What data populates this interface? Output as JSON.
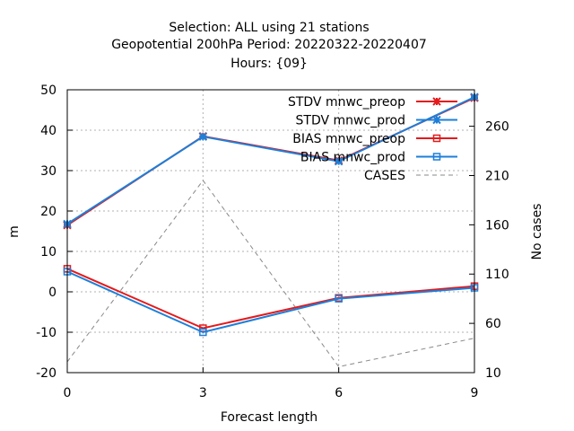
{
  "chart_data": {
    "type": "line",
    "title_lines": [
      "Selection: ALL using    21 stations",
      "Geopotential 200hPa   Period: 20220322-20220407",
      "Hours: {09}"
    ],
    "xlabel": "Forecast length",
    "ylabel": "m",
    "y2label": "No cases",
    "x": [
      0,
      3,
      6,
      9
    ],
    "xlim": [
      0,
      9
    ],
    "ylim": [
      -20,
      50
    ],
    "y2lim": [
      10,
      297
    ],
    "x_ticks": [
      "0",
      "3",
      "6",
      "9"
    ],
    "y_ticks": [
      "-20",
      "-10",
      "0",
      "10",
      "20",
      "30",
      "40",
      "50"
    ],
    "y2_ticks": [
      "10",
      "60",
      "110",
      "160",
      "210",
      "260"
    ],
    "grid": true,
    "legend_position": "top-right",
    "series": [
      {
        "name": "STDV mnwc_preop",
        "axis": "y",
        "color": "#e41a1c",
        "marker": "x",
        "values": [
          16.5,
          38.5,
          32.5,
          48.0
        ]
      },
      {
        "name": "STDV mnwc_prod",
        "axis": "y",
        "color": "#1e7fd8",
        "marker": "x",
        "values": [
          16.8,
          38.4,
          32.3,
          48.2
        ]
      },
      {
        "name": "BIAS mnwc_preop",
        "axis": "y",
        "color": "#e41a1c",
        "marker": "square",
        "values": [
          5.7,
          -9.0,
          -1.5,
          1.4
        ]
      },
      {
        "name": "BIAS mnwc_prod",
        "axis": "y",
        "color": "#1e7fd8",
        "marker": "square",
        "values": [
          5.0,
          -10.0,
          -1.7,
          1.0
        ]
      },
      {
        "name": "CASES",
        "axis": "y2",
        "color": "#888888",
        "marker": "none",
        "dashed": true,
        "values": [
          21,
          205,
          16,
          45
        ]
      }
    ]
  }
}
